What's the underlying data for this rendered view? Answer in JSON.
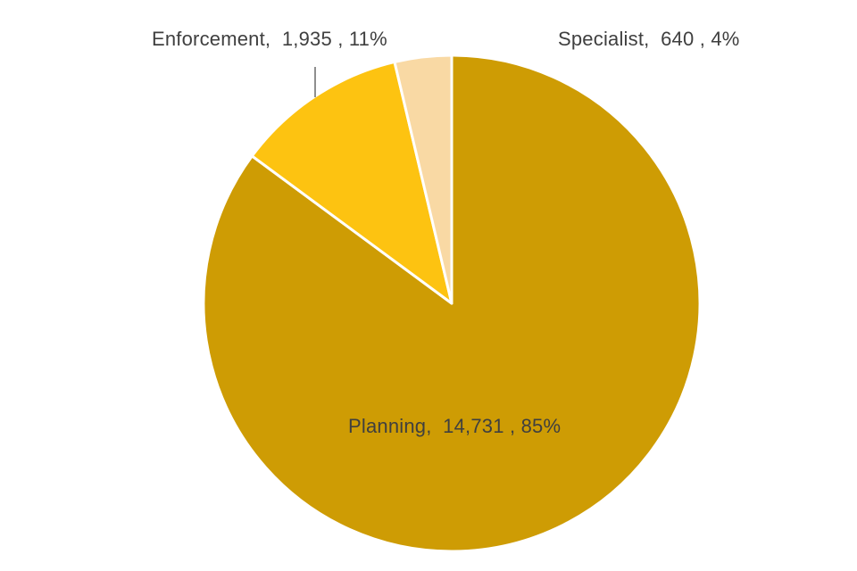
{
  "chart_data": {
    "type": "pie",
    "title": "",
    "categories": [
      "Planning",
      "Enforcement",
      "Specialist"
    ],
    "values": [
      14731,
      1935,
      640
    ],
    "percents": [
      85,
      11,
      4
    ],
    "labels": [
      "Planning,  14,731 , 85%",
      "Enforcement,  1,935 , 11%",
      "Specialist,  640 , 4%"
    ],
    "colors": [
      "#CE9C04",
      "#FDC311",
      "#F9D9A4"
    ],
    "start_angle_deg": 0,
    "direction": "clockwise",
    "slice_border_color": "#FFFFFF",
    "slice_border_width": 3,
    "label_color": "#3F3F3F",
    "leader_line_color": "#8F8F8F",
    "legend_position": "none",
    "background_color": "#FFFFFF"
  }
}
